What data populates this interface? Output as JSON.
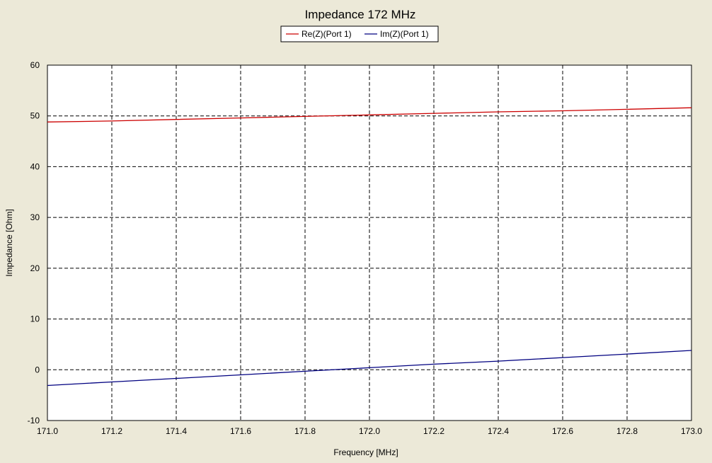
{
  "chart_data": {
    "type": "line",
    "title": "Impedance 172 MHz",
    "xlabel": "Frequency [MHz]",
    "ylabel": "Impedance [Ohm]",
    "xlim": [
      171.0,
      173.0
    ],
    "ylim": [
      -10,
      60
    ],
    "x_ticks": [
      "171.0",
      "171.2",
      "171.4",
      "171.6",
      "171.8",
      "172.0",
      "172.2",
      "172.4",
      "172.6",
      "172.8",
      "173.0"
    ],
    "y_ticks": [
      "60",
      "50",
      "40",
      "30",
      "20",
      "10",
      "0",
      "-10"
    ],
    "grid": true,
    "legend_position": "top-center",
    "colors": {
      "background": "#ECE9D8",
      "plot_background": "#FFFFFF",
      "grid": "#000000"
    },
    "series": [
      {
        "name": "Re(Z)(Port 1)",
        "color": "#CC0000",
        "x": [
          171.0,
          171.2,
          171.4,
          171.6,
          171.8,
          172.0,
          172.2,
          172.4,
          172.6,
          172.8,
          173.0
        ],
        "values": [
          48.8,
          49.0,
          49.3,
          49.6,
          49.9,
          50.2,
          50.5,
          50.8,
          51.0,
          51.3,
          51.6
        ]
      },
      {
        "name": "Im(Z)(Port 1)",
        "color": "#000080",
        "x": [
          171.0,
          171.2,
          171.4,
          171.6,
          171.8,
          172.0,
          172.2,
          172.4,
          172.6,
          172.8,
          173.0
        ],
        "values": [
          -3.1,
          -2.4,
          -1.7,
          -1.0,
          -0.3,
          0.4,
          1.1,
          1.7,
          2.4,
          3.1,
          3.8
        ]
      }
    ]
  }
}
